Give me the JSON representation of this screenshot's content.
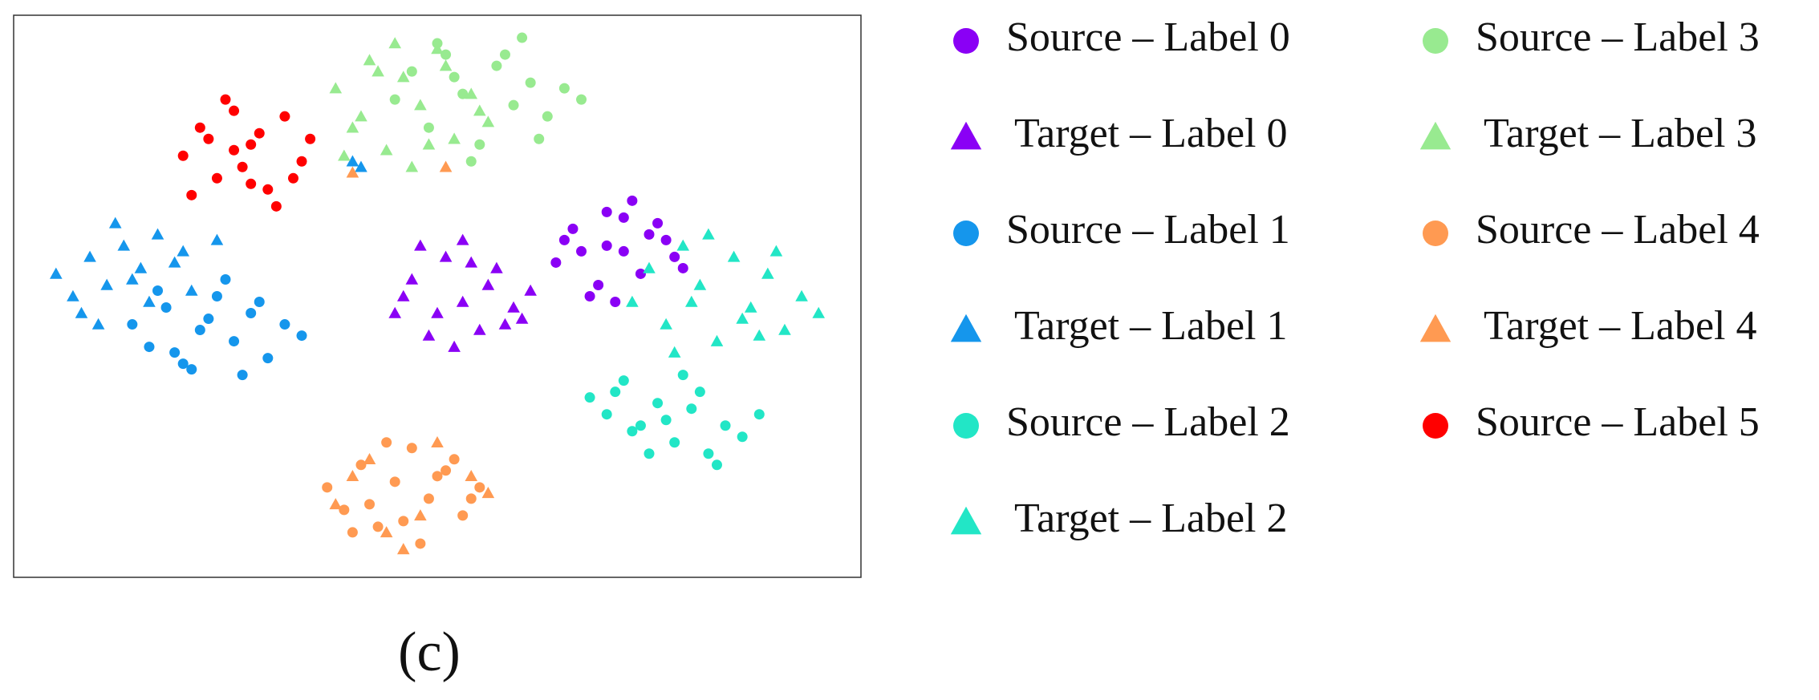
{
  "chart_data": {
    "type": "scatter",
    "caption": "(c)",
    "xlim": [
      0,
      100
    ],
    "ylim": [
      0,
      100
    ],
    "series": [
      {
        "name": "Source – Label 0",
        "color": "#8a00f5",
        "marker": "circle",
        "x": [
          64,
          66,
          68,
          70,
          72,
          74,
          76,
          78,
          65,
          69,
          73,
          77,
          71,
          67,
          75,
          79,
          70,
          72
        ],
        "y": [
          56,
          62,
          50,
          65,
          58,
          54,
          63,
          57,
          60,
          52,
          67,
          60,
          49,
          58,
          61,
          55,
          59,
          64
        ]
      },
      {
        "name": "Target – Label 0",
        "color": "#8a00f5",
        "marker": "triangle",
        "x": [
          45,
          47,
          49,
          51,
          53,
          55,
          57,
          59,
          61,
          48,
          52,
          56,
          60,
          46,
          54,
          50,
          58,
          53
        ],
        "y": [
          47,
          53,
          43,
          57,
          49,
          44,
          55,
          48,
          51,
          59,
          41,
          52,
          46,
          50,
          56,
          47,
          45,
          60
        ]
      },
      {
        "name": "Source – Label 1",
        "color": "#1596ec",
        "marker": "circle",
        "x": [
          14,
          16,
          18,
          20,
          22,
          24,
          26,
          28,
          30,
          32,
          34,
          17,
          21,
          25,
          29,
          19,
          23,
          27
        ],
        "y": [
          45,
          41,
          48,
          38,
          44,
          50,
          42,
          47,
          39,
          45,
          43,
          51,
          37,
          53,
          49,
          40,
          46,
          36
        ]
      },
      {
        "name": "Target – Label 1",
        "color": "#1596ec",
        "marker": "triangle",
        "x": [
          5,
          7,
          9,
          11,
          13,
          15,
          17,
          19,
          21,
          8,
          12,
          16,
          20,
          10,
          14,
          24,
          40,
          41
        ],
        "y": [
          54,
          50,
          57,
          52,
          59,
          55,
          61,
          56,
          51,
          47,
          63,
          49,
          58,
          45,
          53,
          60,
          74,
          73
        ]
      },
      {
        "name": "Source – Label 2",
        "color": "#22e6c6",
        "marker": "circle",
        "x": [
          68,
          70,
          72,
          74,
          76,
          78,
          80,
          82,
          84,
          86,
          88,
          71,
          75,
          79,
          83,
          77,
          81,
          73
        ],
        "y": [
          32,
          29,
          35,
          27,
          31,
          24,
          30,
          22,
          27,
          25,
          29,
          33,
          22,
          36,
          20,
          28,
          33,
          26
        ]
      },
      {
        "name": "Target – Label 2",
        "color": "#22e6c6",
        "marker": "triangle",
        "x": [
          73,
          75,
          77,
          79,
          81,
          83,
          85,
          87,
          89,
          91,
          93,
          95,
          78,
          82,
          86,
          90,
          80,
          88
        ],
        "y": [
          49,
          55,
          45,
          59,
          52,
          42,
          57,
          48,
          54,
          44,
          50,
          47,
          40,
          61,
          46,
          58,
          49,
          43
        ]
      },
      {
        "name": "Source – Label 3",
        "color": "#98ea90",
        "marker": "circle",
        "x": [
          45,
          47,
          49,
          51,
          53,
          55,
          57,
          59,
          61,
          63,
          65,
          67,
          50,
          54,
          58,
          62,
          52,
          60
        ],
        "y": [
          85,
          90,
          80,
          93,
          86,
          77,
          91,
          84,
          88,
          82,
          87,
          85,
          95,
          74,
          93,
          78,
          89,
          96
        ]
      },
      {
        "name": "Target – Label 3",
        "color": "#98ea90",
        "marker": "triangle",
        "x": [
          38,
          40,
          42,
          44,
          46,
          48,
          50,
          52,
          54,
          56,
          39,
          43,
          47,
          51,
          55,
          41,
          45,
          49
        ],
        "y": [
          87,
          80,
          92,
          76,
          89,
          84,
          94,
          78,
          86,
          81,
          75,
          90,
          73,
          91,
          83,
          82,
          95,
          77
        ]
      },
      {
        "name": "Source – Label 4",
        "color": "#ff9a52",
        "marker": "circle",
        "x": [
          37,
          39,
          41,
          43,
          45,
          47,
          49,
          51,
          53,
          55,
          40,
          44,
          48,
          52,
          42,
          46,
          50,
          54
        ],
        "y": [
          16,
          12,
          20,
          9,
          17,
          23,
          14,
          19,
          11,
          16,
          8,
          24,
          6,
          21,
          13,
          10,
          18,
          14
        ]
      },
      {
        "name": "Target – Label 4",
        "color": "#ff9a52",
        "marker": "triangle",
        "x": [
          38,
          42,
          46,
          50,
          54,
          56,
          44,
          48,
          40,
          51,
          40
        ],
        "y": [
          13,
          21,
          5,
          24,
          18,
          15,
          8,
          11,
          18,
          73,
          72
        ]
      },
      {
        "name": "Source – Label 5",
        "color": "#ff0000",
        "marker": "circle",
        "x": [
          20,
          22,
          24,
          26,
          28,
          30,
          32,
          34,
          21,
          25,
          29,
          33,
          23,
          27,
          31,
          35,
          26,
          28
        ],
        "y": [
          75,
          80,
          71,
          83,
          77,
          69,
          82,
          74,
          68,
          85,
          79,
          71,
          78,
          73,
          66,
          78,
          76,
          70
        ]
      }
    ]
  }
}
